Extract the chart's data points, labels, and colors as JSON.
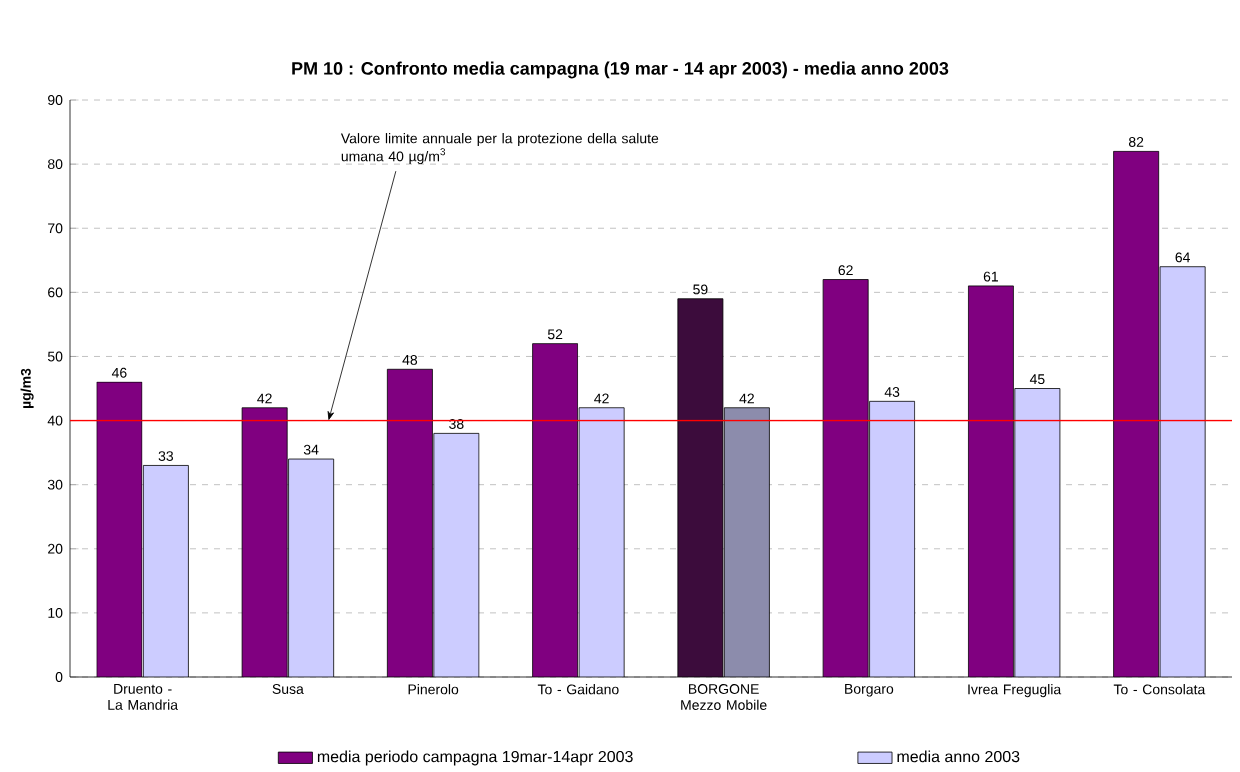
{
  "chart_data": {
    "type": "bar",
    "title": "PM 10 : Confronto media campagna (19 mar - 14 apr 2003) - media anno 2003",
    "ylabel": "µg/m3",
    "categories": [
      "Druento - La Mandria",
      "Susa",
      "Pinerolo",
      "To - Gaidano",
      "BORGONE Mezzo Mobile",
      "Borgaro",
      "Ivrea Freguglia",
      "To - Consolata"
    ],
    "series": [
      {
        "name": "media periodo campagna 19mar-14apr 2003",
        "color": "#800080",
        "colors": [
          "#800080",
          "#800080",
          "#800080",
          "#800080",
          "#3c0c3c",
          "#800080",
          "#800080",
          "#800080"
        ],
        "values": [
          46,
          42,
          48,
          52,
          59,
          62,
          61,
          82
        ]
      },
      {
        "name": "media anno 2003",
        "color": "#ccccff",
        "colors": [
          "#ccccff",
          "#ccccff",
          "#ccccff",
          "#ccccff",
          "#8c8cac",
          "#ccccff",
          "#ccccff",
          "#ccccff"
        ],
        "values": [
          33,
          34,
          38,
          42,
          42,
          43,
          45,
          64
        ]
      }
    ],
    "ylim": [
      0,
      90
    ],
    "yticks": [
      0,
      10,
      20,
      30,
      40,
      50,
      60,
      70,
      80,
      90
    ],
    "grid": "y",
    "legend": "bottom",
    "data_labels": true,
    "ref_lines": [
      {
        "axis": "y",
        "value": 40,
        "color": "#ff0000",
        "label": "Valore limite annuale per la protezione della salute umana 40 µg/m$^{3}$"
      }
    ]
  }
}
